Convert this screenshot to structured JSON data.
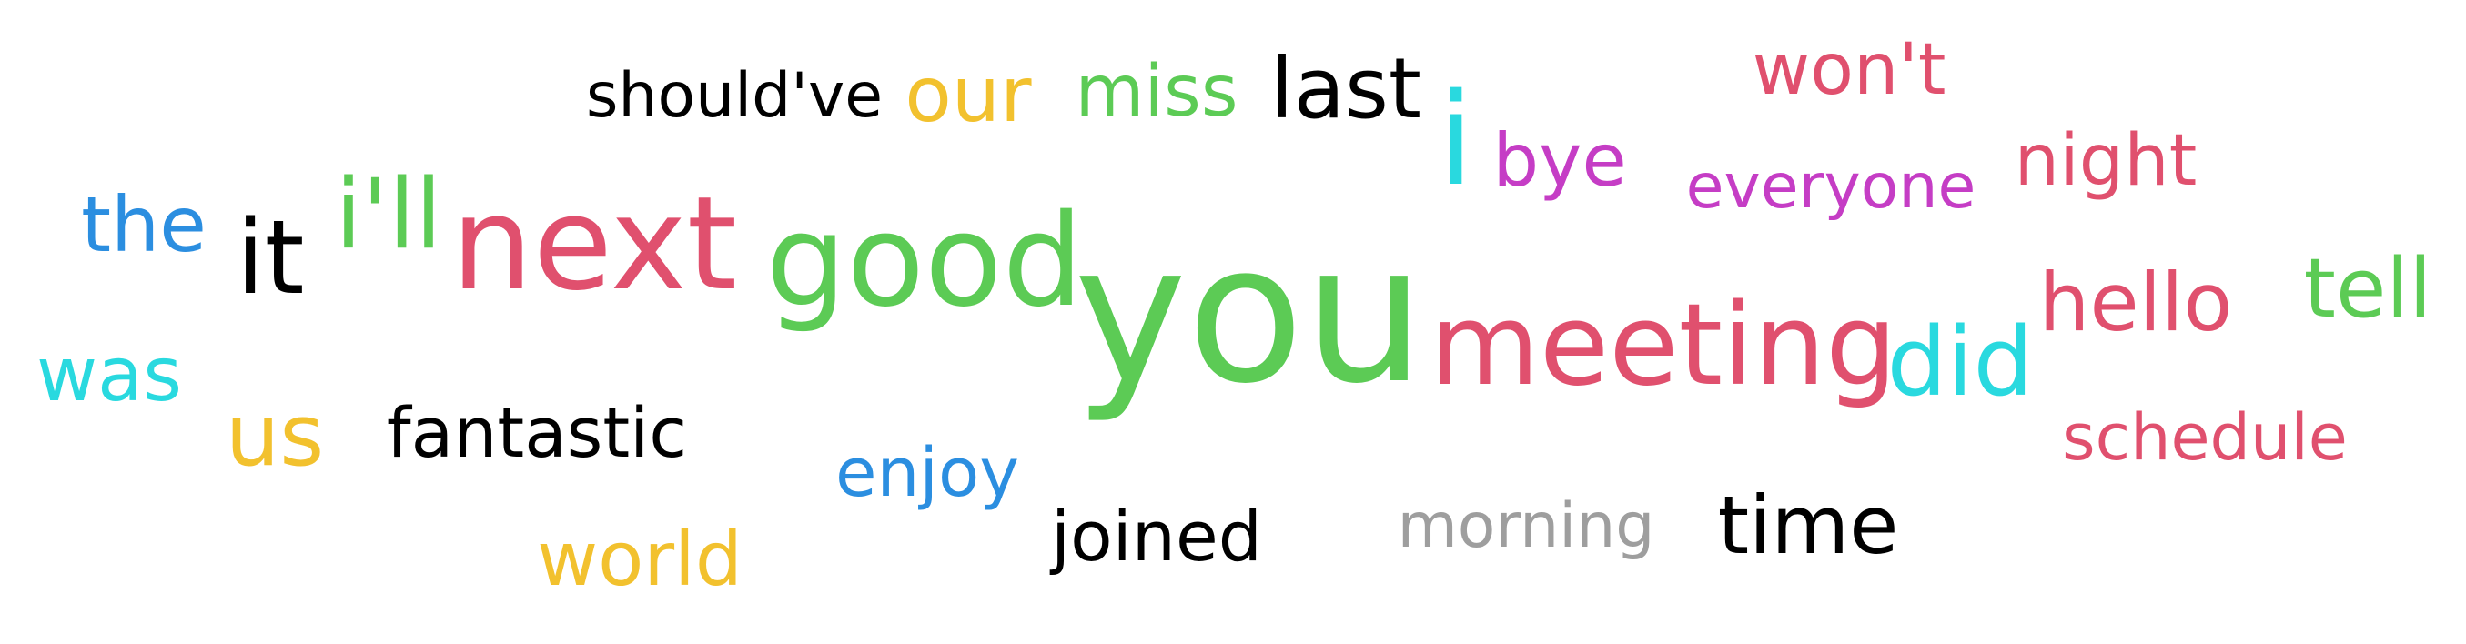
{
  "colors": {
    "black": "#000000",
    "yellow": "#F2C12E",
    "green": "#5CCB55",
    "pink": "#E0506E",
    "blue": "#2B8EE0",
    "cyan": "#29D9DF",
    "magenta": "#C53DC5",
    "gray": "#9E9E9E"
  },
  "words": [
    {
      "text": "should've",
      "color": "black"
    },
    {
      "text": "our",
      "color": "yellow"
    },
    {
      "text": "miss",
      "color": "green"
    },
    {
      "text": "last",
      "color": "black"
    },
    {
      "text": "won't",
      "color": "pink"
    },
    {
      "text": "i",
      "color": "cyan"
    },
    {
      "text": "bye",
      "color": "magenta"
    },
    {
      "text": "night",
      "color": "pink"
    },
    {
      "text": "everyone",
      "color": "magenta"
    },
    {
      "text": "the",
      "color": "blue"
    },
    {
      "text": "it",
      "color": "black"
    },
    {
      "text": "i'll",
      "color": "green"
    },
    {
      "text": "next",
      "color": "pink"
    },
    {
      "text": "good",
      "color": "green"
    },
    {
      "text": "you",
      "color": "green"
    },
    {
      "text": "meeting",
      "color": "pink"
    },
    {
      "text": "did",
      "color": "cyan"
    },
    {
      "text": "hello",
      "color": "pink"
    },
    {
      "text": "tell",
      "color": "green"
    },
    {
      "text": "was",
      "color": "cyan"
    },
    {
      "text": "us",
      "color": "yellow"
    },
    {
      "text": "fantastic",
      "color": "black"
    },
    {
      "text": "enjoy",
      "color": "blue"
    },
    {
      "text": "schedule",
      "color": "pink"
    },
    {
      "text": "joined",
      "color": "black"
    },
    {
      "text": "morning",
      "color": "gray"
    },
    {
      "text": "time",
      "color": "black"
    },
    {
      "text": "world",
      "color": "yellow"
    }
  ]
}
